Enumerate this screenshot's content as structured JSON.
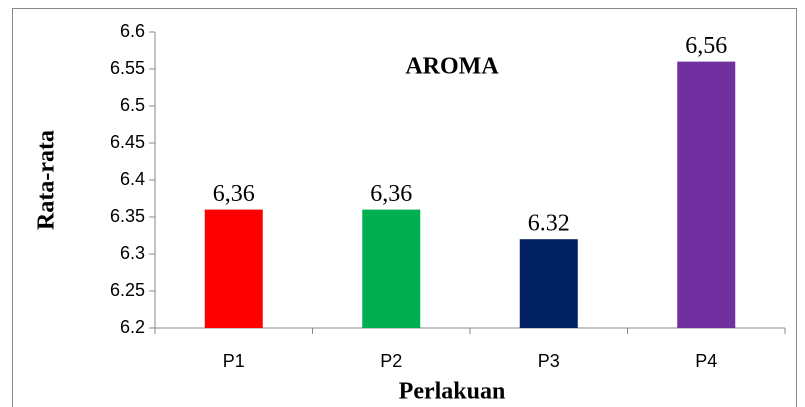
{
  "chart_data": {
    "type": "bar",
    "title": "AROMA",
    "x_label": "Perlakuan",
    "y_label": "Rata-rata",
    "categories": [
      "P1",
      "P2",
      "P3",
      "P4"
    ],
    "values": [
      6.36,
      6.36,
      6.32,
      6.56
    ],
    "value_labels": [
      "6,36",
      "6,36",
      "6.32",
      "6,56"
    ],
    "colors": [
      "#ff0000",
      "#00b050",
      "#002060",
      "#7030a0"
    ],
    "ylim": [
      6.2,
      6.6
    ],
    "yticks": [
      6.2,
      6.25,
      6.3,
      6.35,
      6.4,
      6.45,
      6.5,
      6.55,
      6.6
    ],
    "grid": false
  }
}
